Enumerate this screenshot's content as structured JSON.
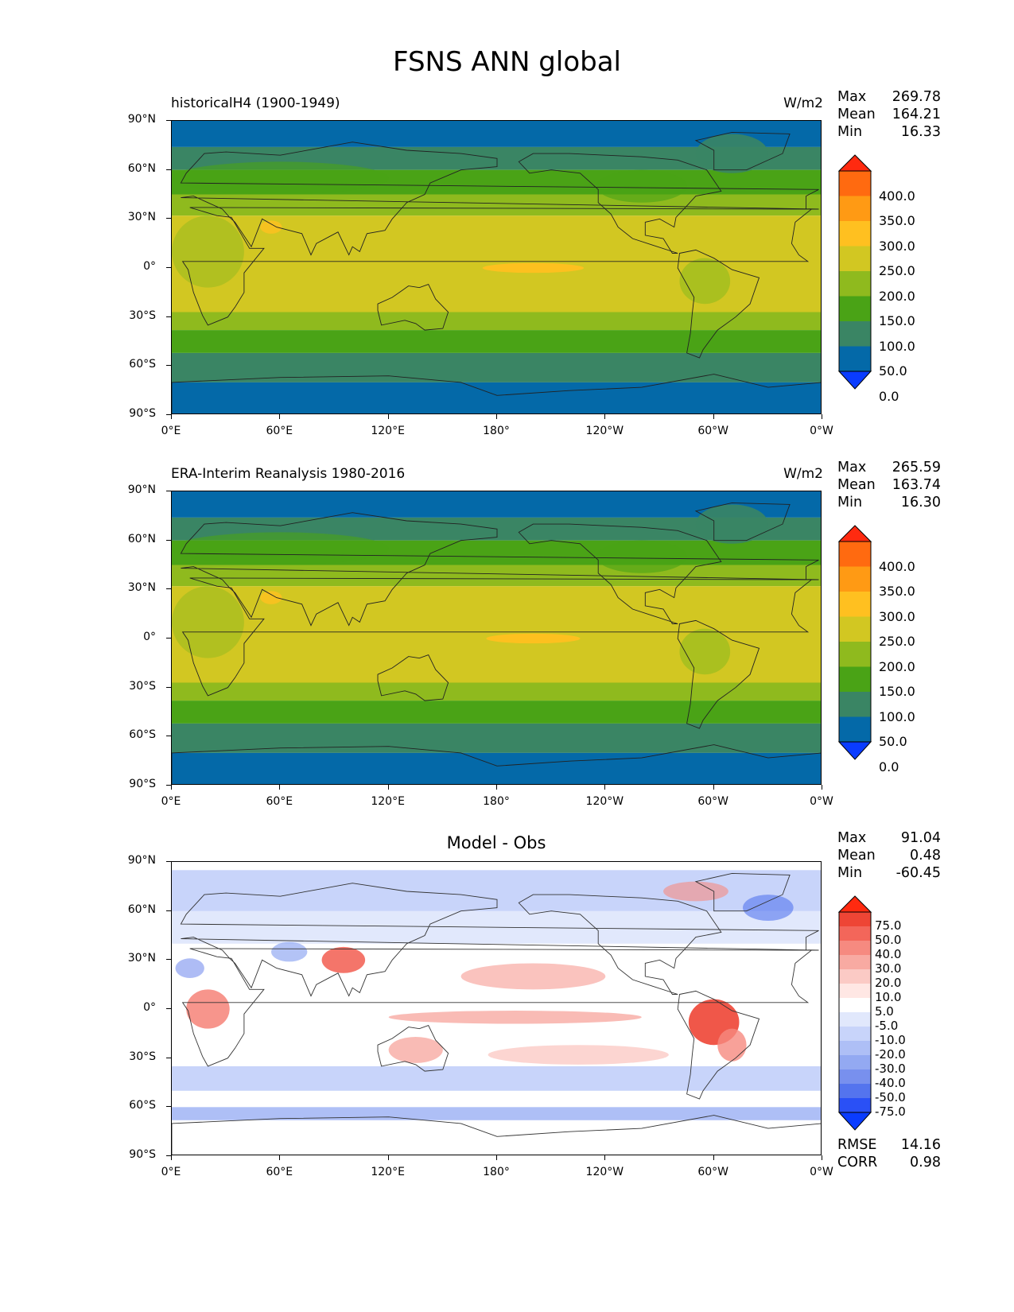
{
  "title": "FSNS ANN global",
  "x_ticks": [
    "0°E",
    "60°E",
    "120°E",
    "180°",
    "120°W",
    "60°W",
    "0°W"
  ],
  "y_ticks": [
    "90°N",
    "60°N",
    "30°N",
    "0°",
    "30°S",
    "60°S",
    "90°S"
  ],
  "panels": [
    {
      "title_left": "historicalH4 (1900-1949)",
      "units": "W/m2",
      "stats": {
        "max_label": "Max",
        "max": "269.78",
        "mean_label": "Mean",
        "mean": "164.21",
        "min_label": "Min",
        "min": "16.33"
      },
      "colorbar_labels": [
        "400.0",
        "350.0",
        "300.0",
        "250.0",
        "200.0",
        "150.0",
        "100.0",
        "50.0",
        "0.0"
      ]
    },
    {
      "title_left": "ERA-Interim Reanalysis 1980-2016",
      "units": "W/m2",
      "stats": {
        "max_label": "Max",
        "max": "265.59",
        "mean_label": "Mean",
        "mean": "163.74",
        "min_label": "Min",
        "min": "16.30"
      },
      "colorbar_labels": [
        "400.0",
        "350.0",
        "300.0",
        "250.0",
        "200.0",
        "150.0",
        "100.0",
        "50.0",
        "0.0"
      ]
    },
    {
      "title_center": "Model - Obs",
      "stats": {
        "max_label": "Max",
        "max": "91.04",
        "mean_label": "Mean",
        "mean": "0.48",
        "min_label": "Min",
        "min": "-60.45"
      },
      "colorbar_labels": [
        "75.0",
        "50.0",
        "40.0",
        "30.0",
        "20.0",
        "10.0",
        "5.0",
        "-5.0",
        "-10.0",
        "-20.0",
        "-30.0",
        "-40.0",
        "-50.0",
        "-75.0"
      ],
      "metrics": {
        "rmse_label": "RMSE",
        "rmse": "14.16",
        "corr_label": "CORR",
        "corr": "0.98"
      }
    }
  ],
  "colors": {
    "abs_scale": [
      "#ff2a10",
      "#ff6a10",
      "#ff9a14",
      "#ffc020",
      "#d2c722",
      "#8fba1e",
      "#4aa316",
      "#3a8564",
      "#0469a8",
      "#0a3cff"
    ],
    "diff_scale": [
      "#ff2a10",
      "#ee4535",
      "#f3665a",
      "#f68a80",
      "#f8aaa2",
      "#fbcac5",
      "#ffe7e4",
      "#ffffff",
      "#e1e8fc",
      "#c8d4fa",
      "#aebff6",
      "#93a9f2",
      "#7890ee",
      "#5474ee",
      "#2a50f6",
      "#0a3cff"
    ]
  }
}
